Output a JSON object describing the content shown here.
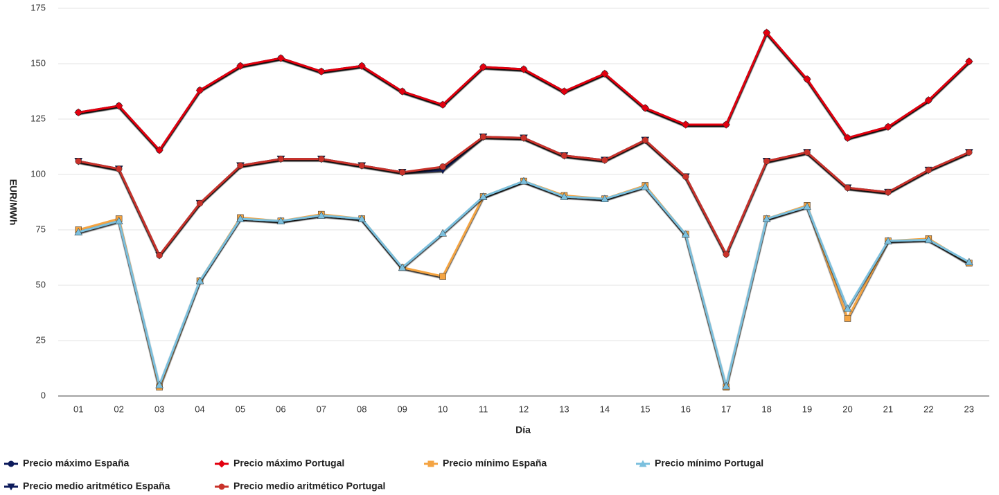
{
  "chart_data": {
    "type": "line",
    "x_label": "Día",
    "y_label": "EUR/MWh",
    "categories": [
      "01",
      "02",
      "03",
      "04",
      "05",
      "06",
      "07",
      "08",
      "09",
      "10",
      "11",
      "12",
      "13",
      "14",
      "15",
      "16",
      "17",
      "18",
      "19",
      "20",
      "21",
      "22",
      "23"
    ],
    "ylim": [
      0,
      175
    ],
    "yticks": [
      0,
      25,
      50,
      75,
      100,
      125,
      150,
      175
    ],
    "grid": true,
    "legend": "bottom-left",
    "series": [
      {
        "name": "Precio máximo España",
        "color": "#0d1b5c",
        "marker": "circle",
        "values": [
          128,
          131,
          111,
          138,
          149,
          152.5,
          146.5,
          149,
          137.5,
          131.5,
          148.5,
          147.5,
          137.5,
          145.5,
          130,
          122.5,
          122.5,
          164,
          143,
          116.5,
          121.5,
          133.5,
          151
        ]
      },
      {
        "name": "Precio máximo Portugal",
        "color": "#e3000f",
        "marker": "diamond",
        "values": [
          128,
          131,
          111,
          138,
          149,
          152.5,
          146.5,
          149,
          137.5,
          131.5,
          148.5,
          147.5,
          137.5,
          145.5,
          130,
          122.5,
          122.5,
          164,
          143,
          116.5,
          121.5,
          133.5,
          151
        ]
      },
      {
        "name": "Precio mínimo España",
        "color": "#f4a443",
        "marker": "square",
        "values": [
          75,
          80,
          4,
          52,
          80.5,
          79,
          82,
          80,
          58,
          54,
          90,
          97,
          90.5,
          89,
          95,
          73,
          4,
          80,
          86,
          35,
          70,
          71,
          60
        ]
      },
      {
        "name": "Precio mínimo Portugal",
        "color": "#7cc0de",
        "marker": "triangle",
        "values": [
          74,
          79,
          5,
          52,
          80,
          79,
          81.5,
          80,
          58,
          73.5,
          90,
          97,
          90,
          89,
          94.5,
          73,
          4.5,
          80,
          85.5,
          39.5,
          70,
          70.5,
          60.5
        ]
      },
      {
        "name": "Precio medio aritmético España",
        "color": "#0d1b5c",
        "marker": "triangle-down",
        "values": [
          106,
          102.5,
          63.5,
          87,
          104,
          107,
          107,
          104,
          101,
          102,
          117,
          116.5,
          108.5,
          106.5,
          115.5,
          99,
          64,
          106,
          110,
          94,
          92,
          102,
          110
        ]
      },
      {
        "name": "Precio medio aritmético Portugal",
        "color": "#c9322a",
        "marker": "circle",
        "values": [
          106,
          102.5,
          63.5,
          87,
          104,
          107,
          107,
          104,
          101,
          103.5,
          117,
          116.5,
          108.5,
          106.5,
          115.5,
          99,
          64,
          106,
          110,
          94,
          92,
          102,
          110
        ]
      }
    ]
  }
}
